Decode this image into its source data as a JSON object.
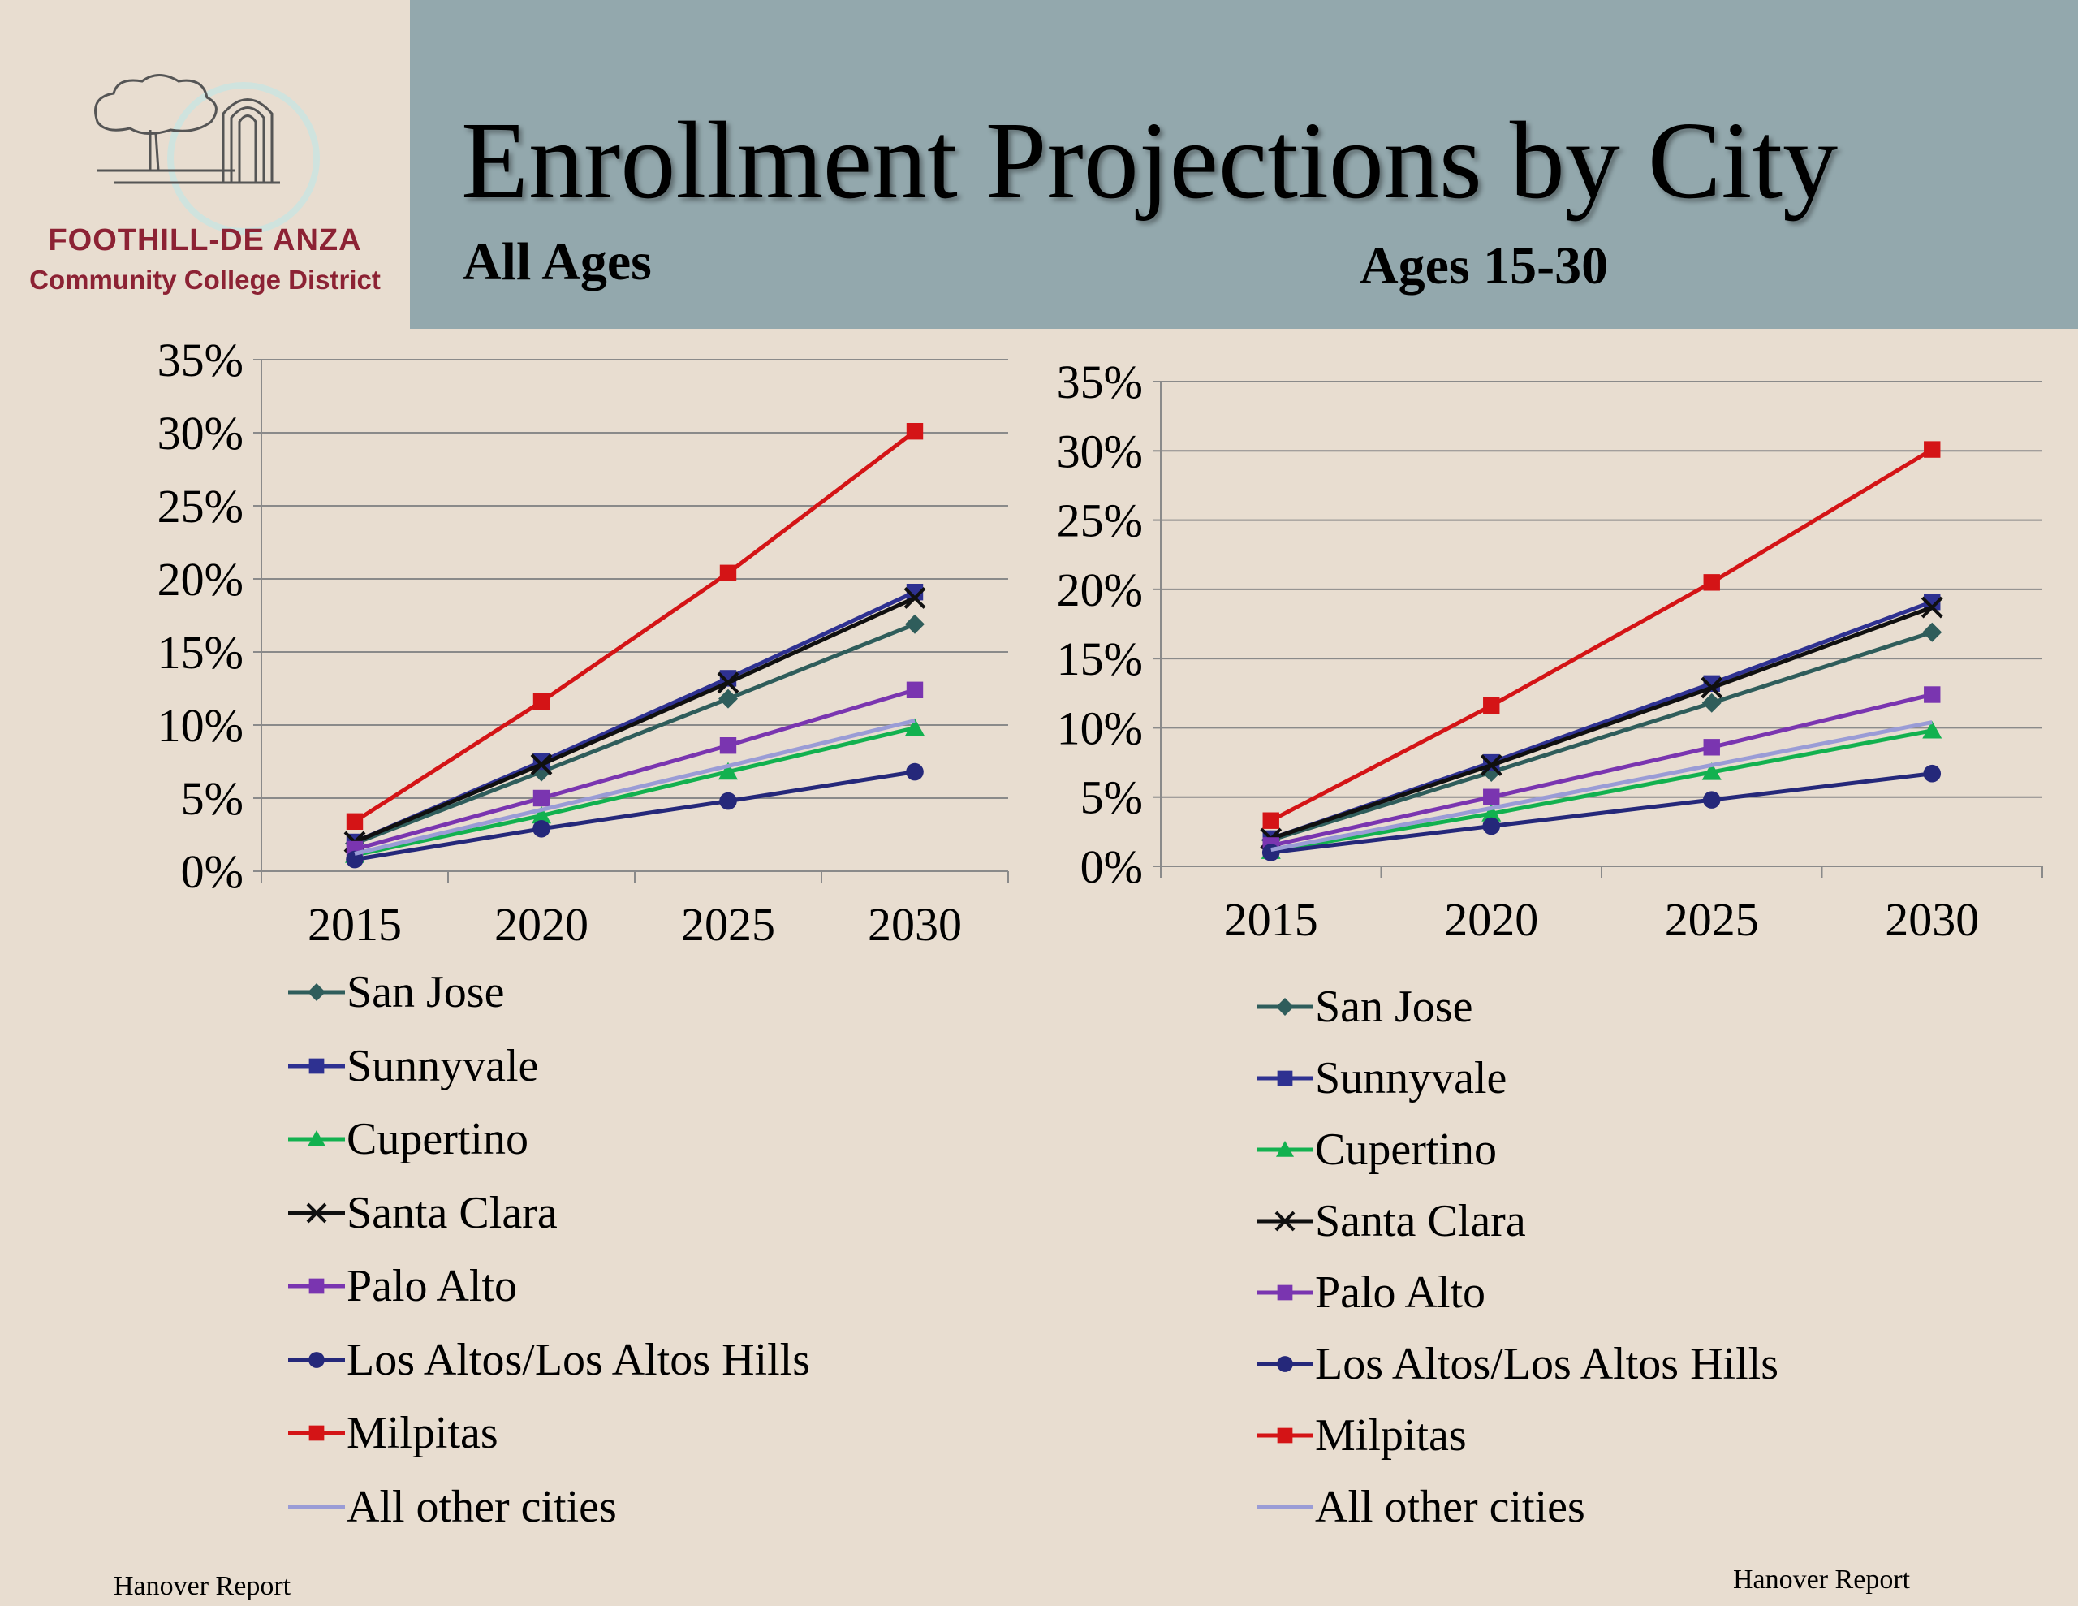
{
  "header": {
    "title": "Enrollment Projections by City",
    "logo_name": "FOOTHILL-DE ANZA",
    "logo_sub": "Community College District"
  },
  "footer": {
    "left": "Hanover Report",
    "right": "Hanover Report"
  },
  "chart_data": [
    {
      "type": "line",
      "title": "All Ages",
      "categories": [
        "2015",
        "2020",
        "2025",
        "2030"
      ],
      "ylim": [
        0,
        0.35
      ],
      "yticks": [
        "0%",
        "5%",
        "10%",
        "15%",
        "20%",
        "25%",
        "30%",
        "35%"
      ],
      "grid": true,
      "legend": "bottom",
      "series": [
        {
          "name": "San Jose",
          "marker": "diamond",
          "color": "#2f5d5b",
          "values": [
            0.019,
            0.068,
            0.118,
            0.169
          ]
        },
        {
          "name": "Sunnyvale",
          "marker": "square",
          "color": "#2e3191",
          "values": [
            0.02,
            0.075,
            0.132,
            0.191
          ]
        },
        {
          "name": "Cupertino",
          "marker": "triangle",
          "color": "#12b14f",
          "values": [
            0.011,
            0.038,
            0.068,
            0.098
          ]
        },
        {
          "name": "Santa Clara",
          "marker": "x",
          "color": "#101010",
          "values": [
            0.02,
            0.073,
            0.129,
            0.187
          ]
        },
        {
          "name": "Palo Alto",
          "marker": "square",
          "color": "#7a35b0",
          "values": [
            0.015,
            0.05,
            0.086,
            0.124
          ]
        },
        {
          "name": "Los Altos/Los Altos Hills",
          "marker": "circle",
          "color": "#25287a",
          "values": [
            0.008,
            0.029,
            0.048,
            0.068
          ]
        },
        {
          "name": "Milpitas",
          "marker": "square",
          "color": "#d41416",
          "values": [
            0.034,
            0.116,
            0.204,
            0.301
          ]
        },
        {
          "name": "All other cities",
          "marker": "none",
          "color": "#9a9cd6",
          "values": [
            0.012,
            0.042,
            0.072,
            0.103
          ]
        }
      ]
    },
    {
      "type": "line",
      "title": "Ages 15-30",
      "categories": [
        "2015",
        "2020",
        "2025",
        "2030"
      ],
      "ylim": [
        0,
        0.35
      ],
      "yticks": [
        "0%",
        "5%",
        "10%",
        "15%",
        "20%",
        "25%",
        "30%",
        "35%"
      ],
      "grid": true,
      "legend": "bottom",
      "series": [
        {
          "name": "San Jose",
          "marker": "diamond",
          "color": "#2f5d5b",
          "values": [
            0.019,
            0.068,
            0.118,
            0.169
          ]
        },
        {
          "name": "Sunnyvale",
          "marker": "square",
          "color": "#2e3191",
          "values": [
            0.02,
            0.075,
            0.132,
            0.191
          ]
        },
        {
          "name": "Cupertino",
          "marker": "triangle",
          "color": "#12b14f",
          "values": [
            0.011,
            0.038,
            0.068,
            0.098
          ]
        },
        {
          "name": "Santa Clara",
          "marker": "x",
          "color": "#101010",
          "values": [
            0.02,
            0.073,
            0.129,
            0.187
          ]
        },
        {
          "name": "Palo Alto",
          "marker": "square",
          "color": "#7a35b0",
          "values": [
            0.015,
            0.05,
            0.086,
            0.124
          ]
        },
        {
          "name": "Los Altos/Los Altos Hills",
          "marker": "circle",
          "color": "#25287a",
          "values": [
            0.01,
            0.029,
            0.048,
            0.067
          ]
        },
        {
          "name": "Milpitas",
          "marker": "square",
          "color": "#d41416",
          "values": [
            0.033,
            0.116,
            0.205,
            0.301
          ]
        },
        {
          "name": "All other cities",
          "marker": "none",
          "color": "#9a9cd6",
          "values": [
            0.012,
            0.042,
            0.073,
            0.104
          ]
        }
      ]
    }
  ]
}
